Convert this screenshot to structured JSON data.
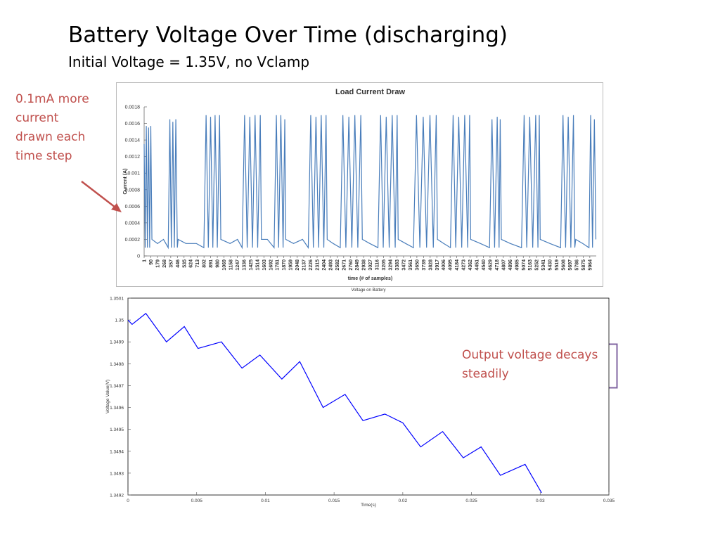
{
  "title": "Battery Voltage Over Time (discharging)",
  "subtitle": "Initial Voltage = 1.35V,  no Vclamp",
  "annotations": [
    "0.1mA more current drawn each time step",
    "Output voltage decays steadily"
  ],
  "chart_data": [
    {
      "type": "line",
      "title": "Load Current Draw",
      "xlabel": "time (# of samples)",
      "ylabel": "Current (A)",
      "color": "#4a7ebb",
      "grid": false,
      "xlim": [
        1,
        6050
      ],
      "ylim": [
        0,
        0.0018
      ],
      "yticks": [
        0,
        0.0002,
        0.0004,
        0.0006,
        0.0008,
        0.001,
        0.0012,
        0.0014,
        0.0016,
        0.0018
      ],
      "xticks": [
        1,
        90,
        179,
        268,
        357,
        446,
        535,
        624,
        713,
        802,
        891,
        980,
        1069,
        1158,
        1247,
        1336,
        1425,
        1514,
        1603,
        1692,
        1781,
        1870,
        1959,
        2048,
        2137,
        2226,
        2315,
        2404,
        2493,
        2582,
        2671,
        2760,
        2849,
        2938,
        3027,
        3116,
        3205,
        3294,
        3383,
        3472,
        3561,
        3650,
        3739,
        3828,
        3917,
        4006,
        4095,
        4184,
        4273,
        4362,
        4451,
        4540,
        4629,
        4718,
        4807,
        4896,
        4985,
        5074,
        5163,
        5252,
        5341,
        5430,
        5519,
        5608,
        5697,
        5786,
        5875,
        5964
      ],
      "x": [
        1,
        15,
        30,
        45,
        60,
        75,
        90,
        105,
        180,
        260,
        323,
        345,
        365,
        385,
        405,
        425,
        445,
        456,
        560,
        700,
        800,
        830,
        860,
        890,
        920,
        950,
        980,
        1010,
        1027,
        1150,
        1250,
        1312,
        1345,
        1380,
        1415,
        1450,
        1485,
        1520,
        1555,
        1570,
        1650,
        1740,
        1770,
        1800,
        1830,
        1860,
        1883,
        1895,
        2000,
        2120,
        2197,
        2230,
        2265,
        2300,
        2335,
        2370,
        2405,
        2435,
        2450,
        2530,
        2625,
        2660,
        2700,
        2740,
        2780,
        2820,
        2860,
        2900,
        2920,
        3020,
        3129,
        3165,
        3200,
        3240,
        3280,
        3320,
        3360,
        3386,
        3400,
        3500,
        3604,
        3645,
        3690,
        3735,
        3780,
        3825,
        3870,
        3909,
        3925,
        4010,
        4099,
        4135,
        4170,
        4210,
        4250,
        4290,
        4330,
        4356,
        4370,
        4500,
        4622,
        4655,
        4690,
        4725,
        4750,
        4765,
        4780,
        4900,
        5050,
        5085,
        5120,
        5160,
        5200,
        5240,
        5270,
        5288,
        5300,
        5430,
        5573,
        5605,
        5640,
        5675,
        5710,
        5745,
        5763,
        5775,
        5870,
        5953,
        5975,
        6000,
        6025,
        6045
      ],
      "values": [
        0.00135,
        0.0001,
        0.00157,
        0.0001,
        0.00155,
        0.0001,
        0.00157,
        0.0002,
        0.00015,
        0.0002,
        0.0001,
        0.00165,
        0.0001,
        0.00162,
        0.0001,
        0.00165,
        0.0001,
        0.0002,
        0.00015,
        0.00015,
        0.0001,
        0.0017,
        0.0001,
        0.00168,
        0.0001,
        0.0017,
        0.0001,
        0.0017,
        0.0002,
        0.00015,
        0.0002,
        0.0001,
        0.0017,
        0.0001,
        0.00168,
        0.0001,
        0.0017,
        0.0001,
        0.0017,
        0.0002,
        0.0002,
        0.0001,
        0.0017,
        0.0001,
        0.0017,
        0.0001,
        0.00165,
        0.0002,
        0.00015,
        0.0002,
        0.0001,
        0.0017,
        0.0001,
        0.00168,
        0.0001,
        0.0017,
        0.0001,
        0.0017,
        0.0002,
        0.00015,
        0.0001,
        0.0017,
        0.0001,
        0.00168,
        0.0001,
        0.0017,
        0.0001,
        0.0017,
        0.0002,
        0.00015,
        0.0001,
        0.0017,
        0.0001,
        0.00168,
        0.0001,
        0.0017,
        0.0001,
        0.0017,
        0.0002,
        0.00015,
        0.0001,
        0.0017,
        0.0001,
        0.00168,
        0.0001,
        0.0017,
        0.0001,
        0.0017,
        0.0002,
        0.00015,
        0.0001,
        0.0017,
        0.0001,
        0.00168,
        0.0001,
        0.0017,
        0.0001,
        0.0017,
        0.0002,
        0.00015,
        0.0001,
        0.00165,
        0.0001,
        0.00168,
        0.0001,
        0.00165,
        0.0002,
        0.00015,
        0.0001,
        0.0017,
        0.0001,
        0.00168,
        0.0001,
        0.0017,
        0.0001,
        0.0017,
        0.0002,
        0.00015,
        0.0001,
        0.0017,
        0.0001,
        0.00168,
        0.0001,
        0.0017,
        0.0001,
        0.0002,
        0.00015,
        0.0001,
        0.0017,
        0.0001,
        0.00165,
        0.0002
      ]
    },
    {
      "type": "line",
      "title": "Voltage on Battery",
      "xlabel": "Time(s)",
      "ylabel": "Voltage Value(V)",
      "color": "#0000ff",
      "grid": false,
      "xlim": [
        0,
        0.035
      ],
      "ylim": [
        1.3492,
        1.3501
      ],
      "xticks": [
        0,
        0.005,
        0.01,
        0.015,
        0.02,
        0.025,
        0.03,
        0.035
      ],
      "yticks": [
        1.3492,
        1.3493,
        1.3494,
        1.3495,
        1.3496,
        1.3497,
        1.3498,
        1.3499,
        1.35,
        1.3501
      ],
      "x": [
        0,
        0.0003,
        0.0013,
        0.0028,
        0.0041,
        0.0051,
        0.0068,
        0.0083,
        0.0096,
        0.0112,
        0.0125,
        0.0142,
        0.0158,
        0.0171,
        0.0187,
        0.02,
        0.0213,
        0.0229,
        0.0244,
        0.0257,
        0.0271,
        0.0289,
        0.0301
      ],
      "values": [
        1.35,
        1.34998,
        1.35003,
        1.3499,
        1.34997,
        1.34987,
        1.3499,
        1.34978,
        1.34984,
        1.34973,
        1.34981,
        1.3496,
        1.34966,
        1.34954,
        1.34957,
        1.34953,
        1.34942,
        1.34949,
        1.34937,
        1.34942,
        1.34929,
        1.34934,
        1.34921
      ]
    }
  ]
}
